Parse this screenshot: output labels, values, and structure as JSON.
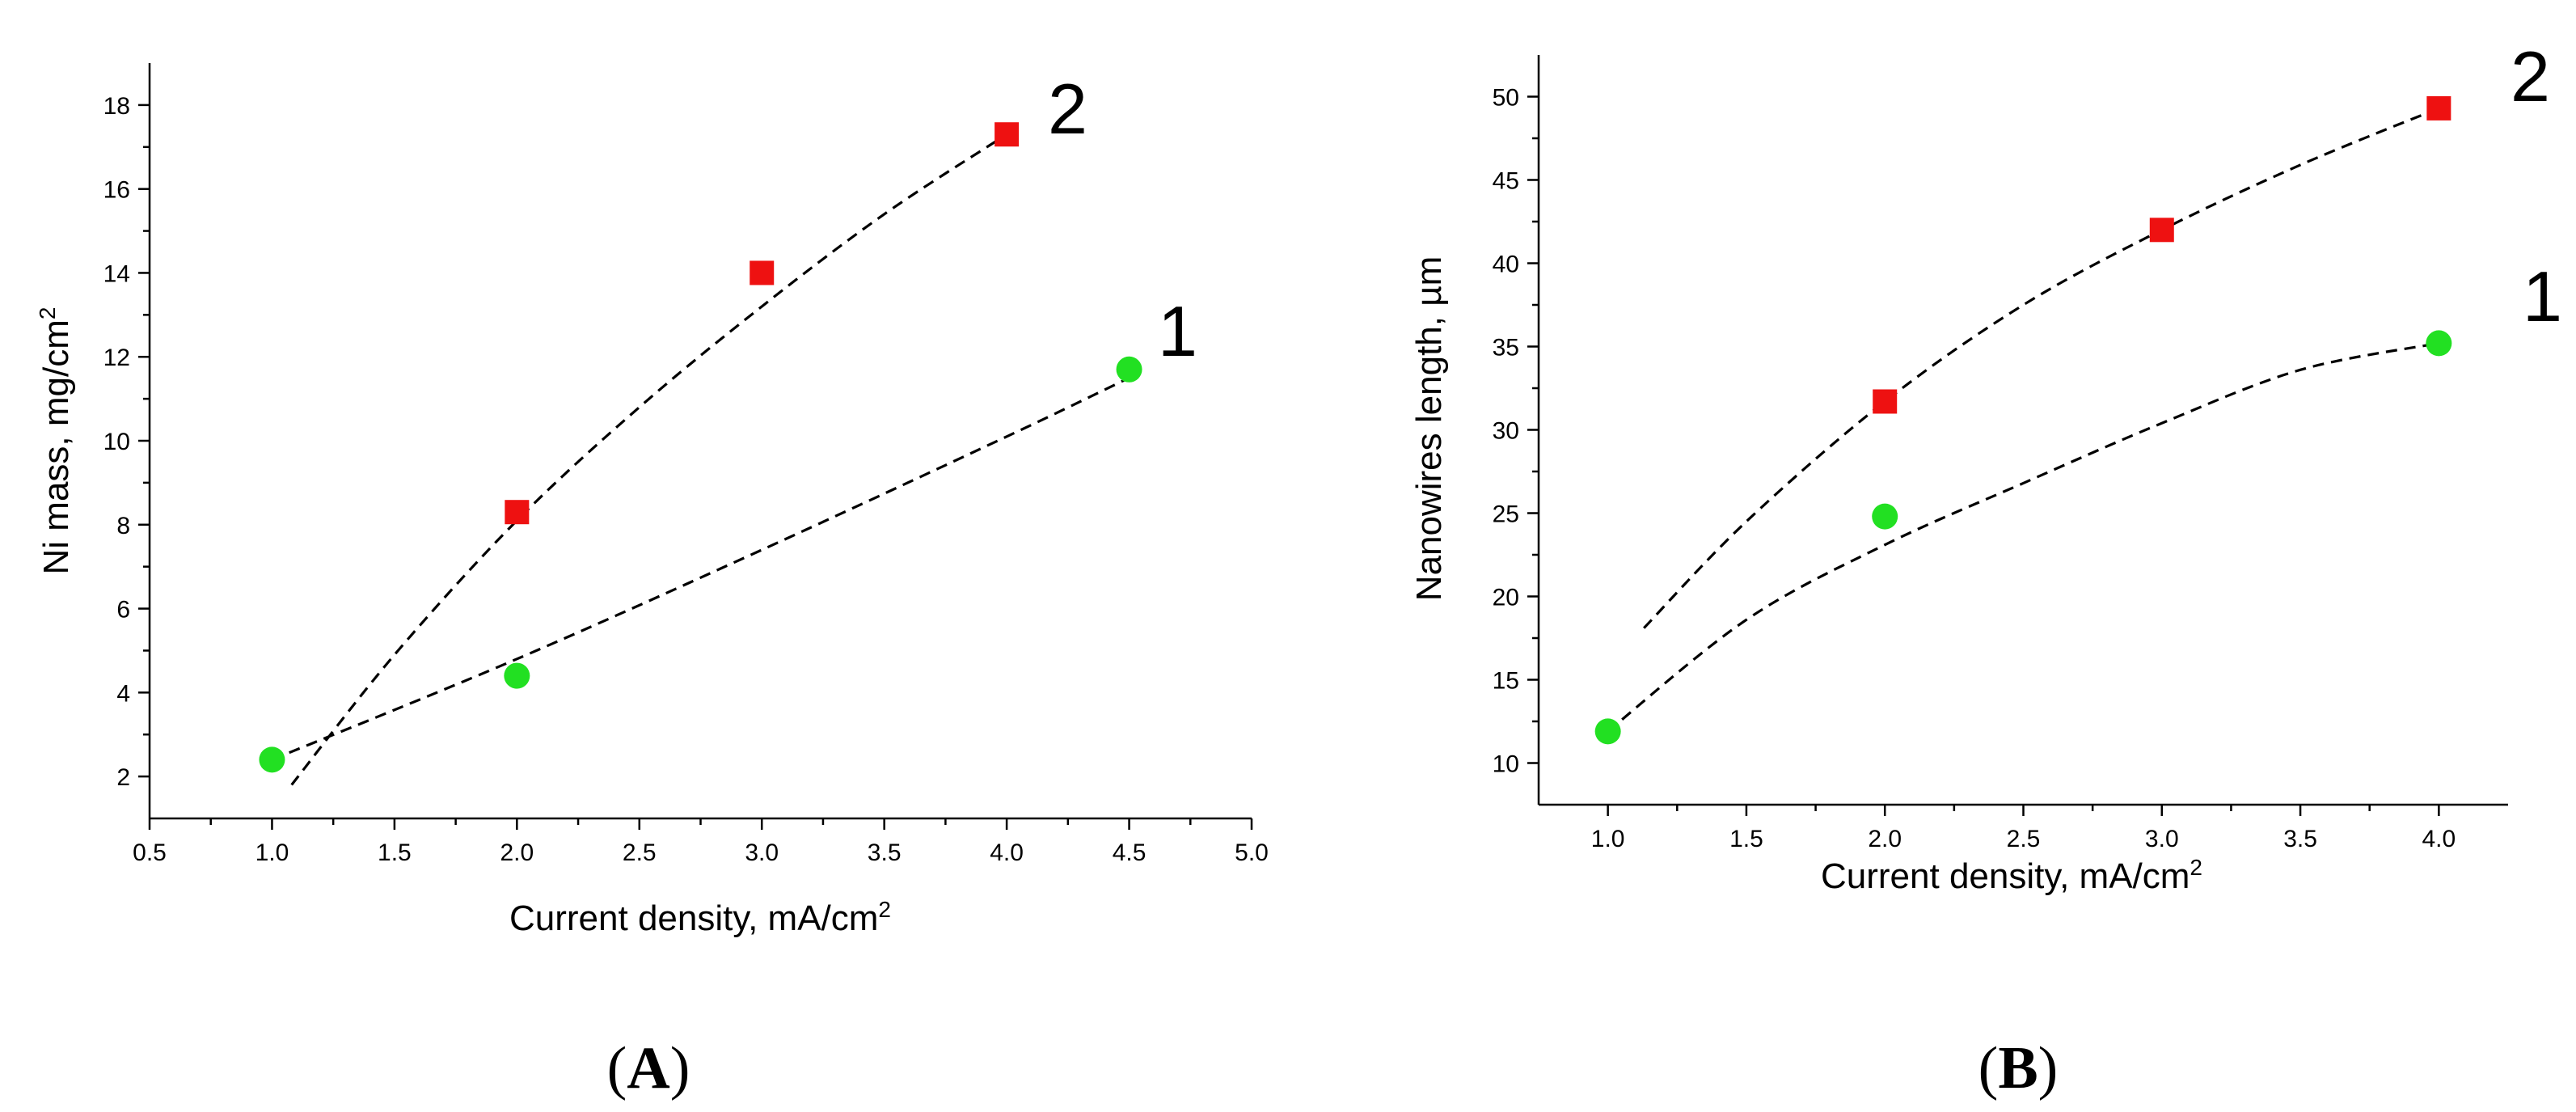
{
  "chart_data": [
    {
      "type": "scatter",
      "panel_label": "A",
      "xlabel": "Current density, mA/cm",
      "xlabel_sup": "2",
      "ylabel": "Ni mass, mg/cm",
      "ylabel_sup": "2",
      "xlim": [
        0.5,
        5.0
      ],
      "ylim": [
        1,
        19
      ],
      "x_ticks": [
        "0.5",
        "1.0",
        "1.5",
        "2.0",
        "2.5",
        "3.0",
        "3.5",
        "4.0",
        "4.5",
        "5.0"
      ],
      "y_ticks": [
        "2",
        "4",
        "6",
        "8",
        "10",
        "12",
        "14",
        "16",
        "18"
      ],
      "series": [
        {
          "name": "1",
          "color": "#22e022",
          "marker": "circle",
          "x": [
            1.0,
            2.0,
            4.5
          ],
          "y": [
            2.4,
            4.4,
            11.7
          ],
          "fit": {
            "x": [
              1.0,
              2.0,
              3.0,
              4.0,
              4.5
            ],
            "y": [
              2.4,
              4.8,
              7.4,
              10.1,
              11.5
            ]
          }
        },
        {
          "name": "2",
          "color": "#ee1111",
          "marker": "square",
          "x": [
            2.0,
            3.0,
            4.0
          ],
          "y": [
            8.3,
            14.0,
            17.3
          ],
          "fit": {
            "x": [
              1.08,
              1.5,
              2.0,
              2.5,
              3.0,
              3.5,
              4.0
            ],
            "y": [
              1.8,
              4.9,
              8.1,
              10.8,
              13.2,
              15.4,
              17.3
            ]
          }
        }
      ]
    },
    {
      "type": "scatter",
      "panel_label": "B",
      "xlabel": "Current density, mA/cm",
      "xlabel_sup": "2",
      "ylabel": "Nanowires length, µm",
      "xlim": [
        0.75,
        4.25
      ],
      "ylim": [
        7.5,
        52.5
      ],
      "x_ticks": [
        "1.0",
        "1.5",
        "2.0",
        "2.5",
        "3.0",
        "3.5",
        "4.0"
      ],
      "y_ticks": [
        "10",
        "15",
        "20",
        "25",
        "30",
        "35",
        "40",
        "45",
        "50"
      ],
      "series": [
        {
          "name": "1",
          "color": "#22e022",
          "marker": "circle",
          "x": [
            1.0,
            2.0,
            4.0
          ],
          "y": [
            11.9,
            24.8,
            35.2
          ],
          "fit": {
            "x": [
              1.0,
              1.5,
              2.0,
              2.5,
              3.0,
              3.5,
              4.0
            ],
            "y": [
              11.9,
              18.6,
              23.1,
              26.8,
              30.4,
              33.6,
              35.2
            ]
          }
        },
        {
          "name": "2",
          "color": "#ee1111",
          "marker": "square",
          "x": [
            2.0,
            3.0,
            4.0
          ],
          "y": [
            31.7,
            42.0,
            49.3
          ],
          "fit": {
            "x": [
              1.13,
              1.5,
              2.0,
              2.5,
              3.0,
              3.5,
              4.0
            ],
            "y": [
              18.1,
              24.5,
              31.7,
              37.5,
              42.0,
              45.9,
              49.3
            ]
          }
        }
      ]
    }
  ]
}
